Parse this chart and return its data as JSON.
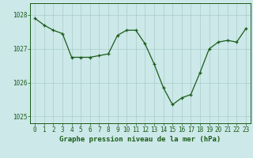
{
  "x": [
    0,
    1,
    2,
    3,
    4,
    5,
    6,
    7,
    8,
    9,
    10,
    11,
    12,
    13,
    14,
    15,
    16,
    17,
    18,
    19,
    20,
    21,
    22,
    23
  ],
  "y": [
    1027.9,
    1027.7,
    1027.55,
    1027.45,
    1026.75,
    1026.75,
    1026.75,
    1026.8,
    1026.85,
    1027.4,
    1027.55,
    1027.55,
    1027.15,
    1026.55,
    1025.85,
    1025.35,
    1025.55,
    1025.65,
    1026.3,
    1027.0,
    1027.2,
    1027.25,
    1027.2,
    1027.6
  ],
  "line_color": "#1a5c1a",
  "marker_color": "#1a5c1a",
  "bg_color": "#cce8e8",
  "grid_color": "#aacccc",
  "title": "Graphe pression niveau de la mer (hPa)",
  "ylabel_ticks": [
    1025,
    1026,
    1027,
    1028
  ],
  "xlim": [
    -0.5,
    23.5
  ],
  "ylim": [
    1024.8,
    1028.35
  ],
  "title_fontsize": 6.5,
  "tick_fontsize": 5.5,
  "marker_size": 3.5,
  "line_width": 0.9
}
